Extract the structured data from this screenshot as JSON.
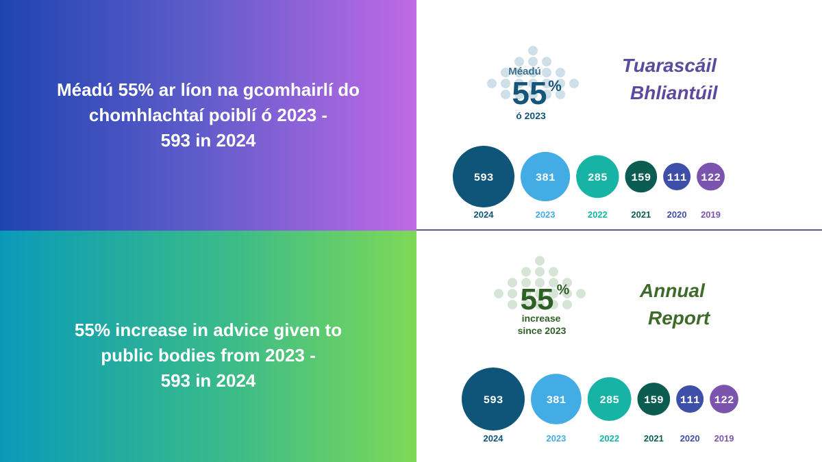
{
  "irish": {
    "headline": [
      "Méadú 55% ar líon na gcomhairlí do",
      "chomhlachtaí poiblí ó 2023 -",
      "593 in 2024"
    ],
    "badge": {
      "top": "Méadú",
      "big": "55",
      "pct": "%",
      "bottom": "ó 2023"
    },
    "report_title": [
      "Tuarascáil",
      "Bhliantúil"
    ]
  },
  "english": {
    "headline": [
      "55% increase in advice given to",
      "public bodies from 2023 -",
      "593 in 2024"
    ],
    "badge": {
      "big": "55",
      "pct": "%",
      "bottom1": "increase",
      "bottom2": "since 2023"
    },
    "report_title": [
      "Annual",
      "Report"
    ]
  },
  "chart_data": [
    {
      "type": "bubble",
      "categories": [
        "2024",
        "2023",
        "2022",
        "2021",
        "2020",
        "2019"
      ],
      "values": [
        593,
        381,
        285,
        159,
        111,
        122
      ],
      "colors": [
        "#0f5479",
        "#44ace5",
        "#17b4a6",
        "#0b5d51",
        "#3d4fa7",
        "#7b55ad"
      ]
    },
    {
      "type": "bubble",
      "categories": [
        "2024",
        "2023",
        "2022",
        "2021",
        "2020",
        "2019"
      ],
      "values": [
        593,
        381,
        285,
        159,
        111,
        122
      ],
      "colors": [
        "#0f5479",
        "#44ace5",
        "#17b4a6",
        "#0b5d51",
        "#3d4fa7",
        "#7b55ad"
      ]
    }
  ]
}
